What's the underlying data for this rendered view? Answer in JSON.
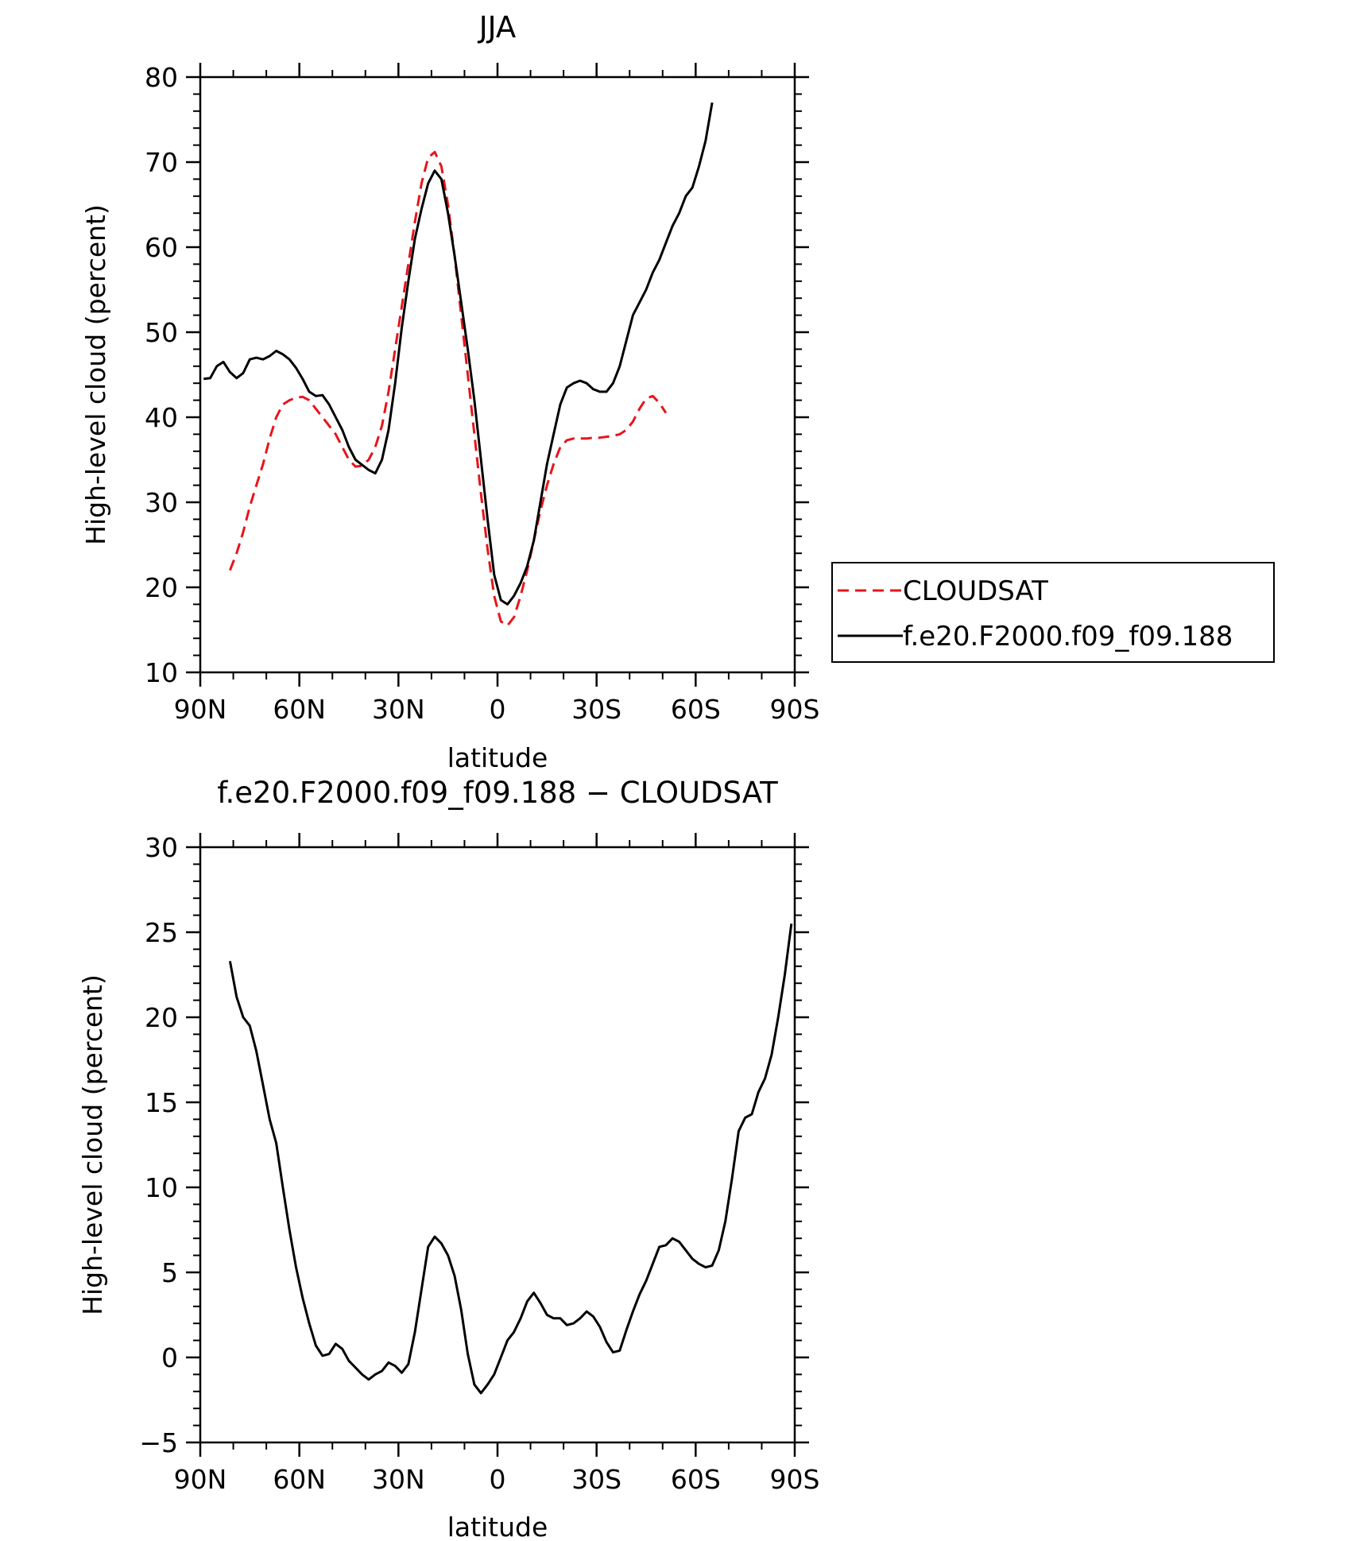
{
  "chart_data": [
    {
      "type": "line",
      "title": "JJA",
      "xlabel": "latitude",
      "ylabel": "High-level cloud (percent)",
      "xlim": [
        90,
        -90
      ],
      "ylim": [
        10,
        80
      ],
      "x_ticks": [
        90,
        60,
        30,
        0,
        -30,
        -60,
        -90
      ],
      "x_tick_labels": [
        "90N",
        "60N",
        "30N",
        "0",
        "30S",
        "60S",
        "90S"
      ],
      "y_ticks": [
        10,
        20,
        30,
        40,
        50,
        60,
        70,
        80
      ],
      "y_tick_labels": [
        "10",
        "20",
        "30",
        "40",
        "50",
        "60",
        "70",
        "80"
      ],
      "legend": {
        "placement": "right of plot"
      },
      "series": [
        {
          "name": "CLOUDSAT",
          "color": "#e8141b",
          "dash": "dashed",
          "points": [
            [
              81,
              22
            ],
            [
              79,
              24
            ],
            [
              77,
              26.5
            ],
            [
              75,
              29.5
            ],
            [
              73,
              32
            ],
            [
              71,
              34.5
            ],
            [
              69,
              37.5
            ],
            [
              67,
              40
            ],
            [
              65,
              41.5
            ],
            [
              63,
              42
            ],
            [
              61,
              42.3
            ],
            [
              59,
              42.4
            ],
            [
              57,
              42
            ],
            [
              55,
              41
            ],
            [
              53,
              40
            ],
            [
              51,
              39
            ],
            [
              49,
              38
            ],
            [
              47,
              36.5
            ],
            [
              45,
              35
            ],
            [
              43,
              34.2
            ],
            [
              41,
              34.3
            ],
            [
              39,
              35
            ],
            [
              37,
              36.5
            ],
            [
              35,
              39
            ],
            [
              33,
              43
            ],
            [
              31,
              48
            ],
            [
              29,
              53
            ],
            [
              27,
              58
            ],
            [
              25,
              63
            ],
            [
              23,
              67.5
            ],
            [
              21,
              70.5
            ],
            [
              19,
              71.2
            ],
            [
              17,
              69.5
            ],
            [
              15,
              65
            ],
            [
              13,
              59
            ],
            [
              11,
              52
            ],
            [
              9,
              45
            ],
            [
              7,
              38
            ],
            [
              5,
              31
            ],
            [
              3,
              24.5
            ],
            [
              1,
              19
            ],
            [
              -1,
              16
            ],
            [
              -3,
              15.5
            ],
            [
              -5,
              16.5
            ],
            [
              -7,
              19
            ],
            [
              -9,
              22
            ],
            [
              -11,
              25.5
            ],
            [
              -13,
              29
            ],
            [
              -15,
              32
            ],
            [
              -17,
              34.5
            ],
            [
              -19,
              36.5
            ],
            [
              -21,
              37.3
            ],
            [
              -23,
              37.5
            ],
            [
              -25,
              37.5
            ],
            [
              -27,
              37.5
            ],
            [
              -29,
              37.6
            ],
            [
              -31,
              37.6
            ],
            [
              -33,
              37.7
            ],
            [
              -35,
              37.8
            ],
            [
              -37,
              38
            ],
            [
              -39,
              38.5
            ],
            [
              -41,
              39.5
            ],
            [
              -43,
              41
            ],
            [
              -45,
              42.2
            ],
            [
              -47,
              42.5
            ],
            [
              -49,
              41.7
            ],
            [
              -51,
              40.5
            ]
          ]
        },
        {
          "name": "f.e20.F2000.f09_f09.188",
          "color": "#000000",
          "dash": "solid",
          "points": [
            [
              89,
              44.5
            ],
            [
              87,
              44.6
            ],
            [
              85,
              46
            ],
            [
              83,
              46.5
            ],
            [
              81,
              45.3
            ],
            [
              79,
              44.6
            ],
            [
              77,
              45.2
            ],
            [
              75,
              46.8
            ],
            [
              73,
              47
            ],
            [
              71,
              46.8
            ],
            [
              69,
              47.2
            ],
            [
              67,
              47.8
            ],
            [
              65,
              47.4
            ],
            [
              63,
              46.8
            ],
            [
              61,
              45.8
            ],
            [
              59,
              44.5
            ],
            [
              57,
              43
            ],
            [
              55,
              42.5
            ],
            [
              53,
              42.6
            ],
            [
              51,
              41.5
            ],
            [
              49,
              40
            ],
            [
              47,
              38.5
            ],
            [
              45,
              36.5
            ],
            [
              43,
              35
            ],
            [
              41,
              34.4
            ],
            [
              39,
              33.8
            ],
            [
              37,
              33.4
            ],
            [
              35,
              35
            ],
            [
              33,
              38.5
            ],
            [
              31,
              44
            ],
            [
              29,
              50.5
            ],
            [
              27,
              56
            ],
            [
              25,
              61
            ],
            [
              23,
              64.5
            ],
            [
              21,
              67.5
            ],
            [
              19,
              69
            ],
            [
              17,
              68
            ],
            [
              15,
              64
            ],
            [
              13,
              59
            ],
            [
              11,
              53.5
            ],
            [
              9,
              48
            ],
            [
              7,
              42
            ],
            [
              5,
              35
            ],
            [
              3,
              28
            ],
            [
              1,
              21.5
            ],
            [
              -1,
              18.5
            ],
            [
              -3,
              18
            ],
            [
              -5,
              19
            ],
            [
              -7,
              20.5
            ],
            [
              -9,
              22.5
            ],
            [
              -11,
              25.5
            ],
            [
              -13,
              30
            ],
            [
              -15,
              34.5
            ],
            [
              -17,
              38
            ],
            [
              -19,
              41.5
            ],
            [
              -21,
              43.5
            ],
            [
              -23,
              44
            ],
            [
              -25,
              44.3
            ],
            [
              -27,
              44
            ],
            [
              -29,
              43.3
            ],
            [
              -31,
              43
            ],
            [
              -33,
              43
            ],
            [
              -35,
              44
            ],
            [
              -37,
              46
            ],
            [
              -39,
              49
            ],
            [
              -41,
              52
            ],
            [
              -43,
              53.5
            ],
            [
              -45,
              55
            ],
            [
              -47,
              57
            ],
            [
              -49,
              58.5
            ],
            [
              -51,
              60.5
            ],
            [
              -53,
              62.5
            ],
            [
              -55,
              64
            ],
            [
              -57,
              66
            ],
            [
              -59,
              67
            ],
            [
              -61,
              69.5
            ],
            [
              -63,
              72.5
            ],
            [
              -65,
              77
            ]
          ]
        }
      ]
    },
    {
      "type": "line",
      "title": "f.e20.F2000.f09_f09.188 − CLOUDSAT",
      "xlabel": "latitude",
      "ylabel": "High-level cloud (percent)",
      "xlim": [
        90,
        -90
      ],
      "ylim": [
        -5,
        30
      ],
      "x_ticks": [
        90,
        60,
        30,
        0,
        -30,
        -60,
        -90
      ],
      "x_tick_labels": [
        "90N",
        "60N",
        "30N",
        "0",
        "30S",
        "60S",
        "90S"
      ],
      "y_ticks": [
        -5,
        0,
        5,
        10,
        15,
        20,
        25,
        30
      ],
      "y_tick_labels": [
        "−5",
        "0",
        "5",
        "10",
        "15",
        "20",
        "25",
        "30"
      ],
      "series": [
        {
          "color": "#000000",
          "dash": "solid",
          "points": [
            [
              81,
              23.3
            ],
            [
              79,
              21.2
            ],
            [
              77,
              20
            ],
            [
              75,
              19.5
            ],
            [
              73,
              18
            ],
            [
              71,
              16
            ],
            [
              69,
              14
            ],
            [
              67,
              12.6
            ],
            [
              65,
              10
            ],
            [
              63,
              7.5
            ],
            [
              61,
              5.3
            ],
            [
              59,
              3.5
            ],
            [
              57,
              2
            ],
            [
              55,
              0.7
            ],
            [
              53,
              0.1
            ],
            [
              51,
              0.2
            ],
            [
              49,
              0.8
            ],
            [
              47,
              0.5
            ],
            [
              45,
              -0.2
            ],
            [
              43,
              -0.6
            ],
            [
              41,
              -1
            ],
            [
              39,
              -1.3
            ],
            [
              37,
              -1
            ],
            [
              35,
              -0.8
            ],
            [
              33,
              -0.3
            ],
            [
              31,
              -0.5
            ],
            [
              29,
              -0.9
            ],
            [
              27,
              -0.4
            ],
            [
              25,
              1.5
            ],
            [
              23,
              4
            ],
            [
              21,
              6.5
            ],
            [
              19,
              7.1
            ],
            [
              17,
              6.7
            ],
            [
              15,
              6
            ],
            [
              13,
              4.8
            ],
            [
              11,
              2.8
            ],
            [
              9,
              0.2
            ],
            [
              7,
              -1.6
            ],
            [
              5,
              -2.1
            ],
            [
              3,
              -1.6
            ],
            [
              1,
              -1
            ],
            [
              -1,
              0
            ],
            [
              -3,
              1
            ],
            [
              -5,
              1.5
            ],
            [
              -7,
              2.3
            ],
            [
              -9,
              3.3
            ],
            [
              -11,
              3.8
            ],
            [
              -13,
              3.2
            ],
            [
              -15,
              2.5
            ],
            [
              -17,
              2.3
            ],
            [
              -19,
              2.3
            ],
            [
              -21,
              1.9
            ],
            [
              -23,
              2
            ],
            [
              -25,
              2.3
            ],
            [
              -27,
              2.7
            ],
            [
              -29,
              2.4
            ],
            [
              -31,
              1.8
            ],
            [
              -33,
              0.9
            ],
            [
              -35,
              0.3
            ],
            [
              -37,
              0.4
            ],
            [
              -39,
              1.6
            ],
            [
              -41,
              2.7
            ],
            [
              -43,
              3.7
            ],
            [
              -45,
              4.5
            ],
            [
              -47,
              5.5
            ],
            [
              -49,
              6.5
            ],
            [
              -51,
              6.6
            ],
            [
              -53,
              7
            ],
            [
              -55,
              6.8
            ],
            [
              -57,
              6.3
            ],
            [
              -59,
              5.8
            ],
            [
              -61,
              5.5
            ],
            [
              -63,
              5.3
            ],
            [
              -65,
              5.4
            ],
            [
              -67,
              6.3
            ],
            [
              -69,
              8
            ],
            [
              -71,
              10.5
            ],
            [
              -73,
              13.3
            ],
            [
              -75,
              14.1
            ],
            [
              -77,
              14.3
            ],
            [
              -79,
              15.6
            ],
            [
              -81,
              16.4
            ],
            [
              -83,
              17.8
            ],
            [
              -85,
              20
            ],
            [
              -87,
              22.5
            ],
            [
              -89,
              25.5
            ]
          ]
        }
      ]
    }
  ]
}
